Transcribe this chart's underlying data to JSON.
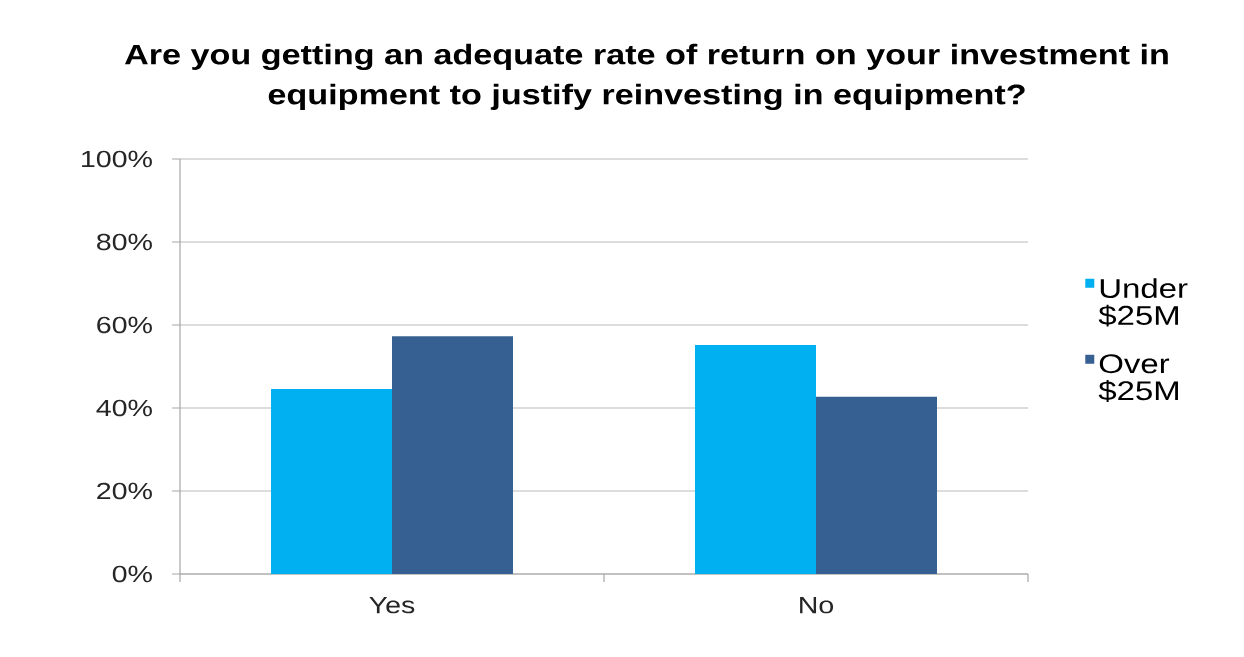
{
  "chart_data": {
    "type": "bar",
    "title": "Are you getting an adequate rate of return on your investment in equipment to justify reinvesting in equipment?",
    "categories": [
      "Yes",
      "No"
    ],
    "series": [
      {
        "name": "Under $25M",
        "color": "#00b0f0",
        "values": [
          44.6,
          55.2
        ]
      },
      {
        "name": "Over $25M",
        "color": "#376092",
        "values": [
          57.3,
          42.7
        ]
      }
    ],
    "ylim": [
      0,
      100
    ],
    "yticks": [
      {
        "value": 0,
        "label": "0%"
      },
      {
        "value": 20,
        "label": "20%"
      },
      {
        "value": 40,
        "label": "40%"
      },
      {
        "value": 60,
        "label": "60%"
      },
      {
        "value": 80,
        "label": "80%"
      },
      {
        "value": 100,
        "label": "100%"
      }
    ],
    "grid": "y",
    "legend": "right"
  }
}
